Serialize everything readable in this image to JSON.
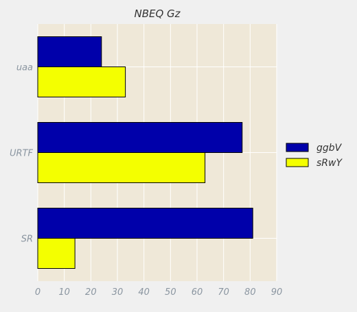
{
  "chart_data": {
    "type": "bar",
    "orientation": "horizontal",
    "title": "NBEQ Gz",
    "categories": [
      "uaa",
      "URTF",
      "SR"
    ],
    "series": [
      {
        "name": "ggbV",
        "values": [
          24,
          77,
          81
        ],
        "color": "#0000aa"
      },
      {
        "name": "sRwY",
        "values": [
          33,
          63,
          14
        ],
        "color": "#f4ff00"
      }
    ],
    "xticks": [
      "0",
      "10",
      "20",
      "30",
      "40",
      "50",
      "60",
      "70",
      "80",
      "90"
    ],
    "xlim": [
      0,
      90
    ],
    "xlabel": "",
    "ylabel": "",
    "grid": true,
    "legend_position": "right",
    "colors": {
      "figure_background": "#f0f0f0",
      "plot_background": "#efe8d8",
      "grid": "#ffffff",
      "bar_edge": "#000000"
    }
  }
}
